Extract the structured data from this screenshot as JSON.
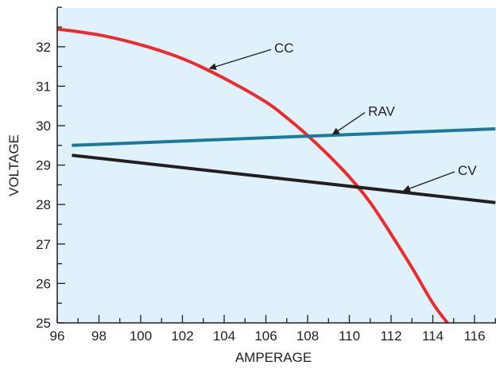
{
  "chart_data": {
    "type": "line",
    "title": "",
    "xlabel": "AMPERAGE",
    "ylabel": "VOLTAGE",
    "xlim": [
      96,
      118
    ],
    "ylim": [
      25,
      33
    ],
    "x_ticks": [
      96,
      98,
      100,
      102,
      104,
      106,
      108,
      110,
      112,
      114,
      116
    ],
    "y_ticks": [
      25,
      26,
      27,
      28,
      29,
      30,
      31,
      32
    ],
    "grid": false,
    "background_color": "#dff1fa",
    "series": [
      {
        "name": "CC",
        "color": "#ee2a2e",
        "x": [
          96,
          98,
          100,
          102,
          104,
          106,
          107,
          108,
          109,
          110,
          111,
          112,
          113,
          114,
          114.7
        ],
        "y": [
          32.45,
          32.3,
          32.05,
          31.7,
          31.2,
          30.6,
          30.2,
          29.75,
          29.25,
          28.7,
          28.05,
          27.25,
          26.4,
          25.5,
          25.0
        ]
      },
      {
        "name": "RAV",
        "color": "#1a7a9b",
        "x": [
          96.7,
          117
        ],
        "y": [
          29.5,
          29.92
        ]
      },
      {
        "name": "CV",
        "color": "#231f20",
        "x": [
          96.7,
          117
        ],
        "y": [
          29.25,
          28.05
        ]
      }
    ],
    "annotations": [
      {
        "label": "CC",
        "text_at": [
          106.4,
          31.85
        ],
        "arrow_to": [
          103.3,
          31.45
        ]
      },
      {
        "label": "RAV",
        "text_at": [
          110.9,
          30.25
        ],
        "arrow_to": [
          109.2,
          29.78
        ]
      },
      {
        "label": "CV",
        "text_at": [
          115.2,
          28.75
        ],
        "arrow_to": [
          112.6,
          28.35
        ]
      }
    ]
  }
}
